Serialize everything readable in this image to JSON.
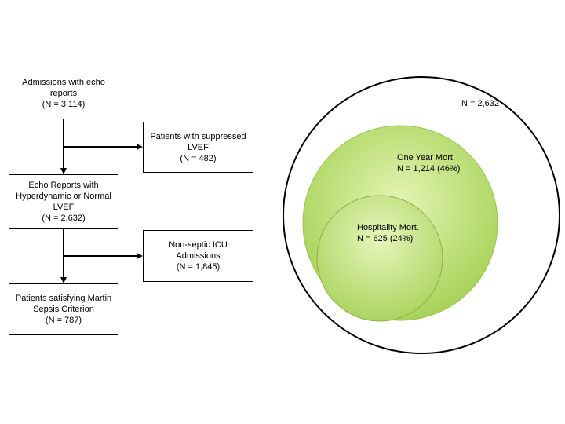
{
  "flowchart": {
    "admissions": {
      "line1": "Admissions with echo\nreports",
      "line2": "(N = 3,114)"
    },
    "suppressed": {
      "line1": "Patients with suppressed\nLVEF",
      "line2": "(N = 482)"
    },
    "echo": {
      "line1": "Echo Reports with\nHyperdynamic or Normal\nLVEF",
      "line2": "(N = 2,632)"
    },
    "nonseptic": {
      "line1": "Non-septic ICU\nAdmissions",
      "line2": "(N = 1,845)"
    },
    "martin": {
      "line1": "Patients satisfying Martin\nSepsis Criterion",
      "line2": "(N = 787)"
    }
  },
  "venn": {
    "outer": {
      "label": "N = 2,632",
      "value": 2632
    },
    "one_year": {
      "label": "One Year Mort.\nN = 1,214 (46%)",
      "value": 1214
    },
    "hospital": {
      "label": "Hospitality Mort.\nN = 625 (24%)",
      "value": 625
    },
    "colors": {
      "fill_light": "#d9f0a0",
      "fill_dark": "#a9d45a",
      "stroke": "#000000",
      "inner_stroke": "#8fae4a"
    }
  }
}
